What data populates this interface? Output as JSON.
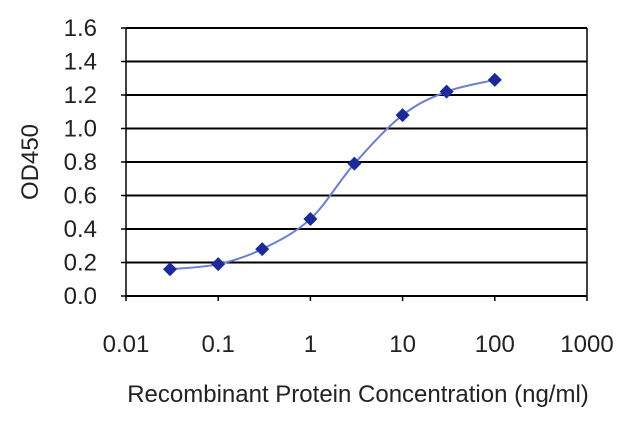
{
  "chart_data": {
    "type": "line",
    "xscale": "log",
    "xlabel": "Recombinant Protein Concentration (ng/ml)",
    "ylabel": "OD450",
    "x_tick_labels": [
      "0.01",
      "0.1",
      "1",
      "10",
      "100",
      "1000"
    ],
    "x_tick_values": [
      0.01,
      0.1,
      1,
      10,
      100,
      1000
    ],
    "y_tick_labels": [
      "0.0",
      "0.2",
      "0.4",
      "0.6",
      "0.8",
      "1.0",
      "1.2",
      "1.4",
      "1.6"
    ],
    "y_tick_values": [
      0.0,
      0.2,
      0.4,
      0.6,
      0.8,
      1.0,
      1.2,
      1.4,
      1.6
    ],
    "xlim": [
      0.01,
      1000
    ],
    "ylim": [
      0.0,
      1.6
    ],
    "grid": "horizontal",
    "series": [
      {
        "x": [
          0.03,
          0.1,
          0.3,
          1,
          3,
          10,
          30,
          100
        ],
        "y": [
          0.16,
          0.19,
          0.28,
          0.46,
          0.79,
          1.08,
          1.22,
          1.29
        ]
      }
    ],
    "colors": {
      "series": "#1a2a9a",
      "line": "#6b7fd6",
      "grid": "#000000",
      "frame": "#000000"
    }
  }
}
